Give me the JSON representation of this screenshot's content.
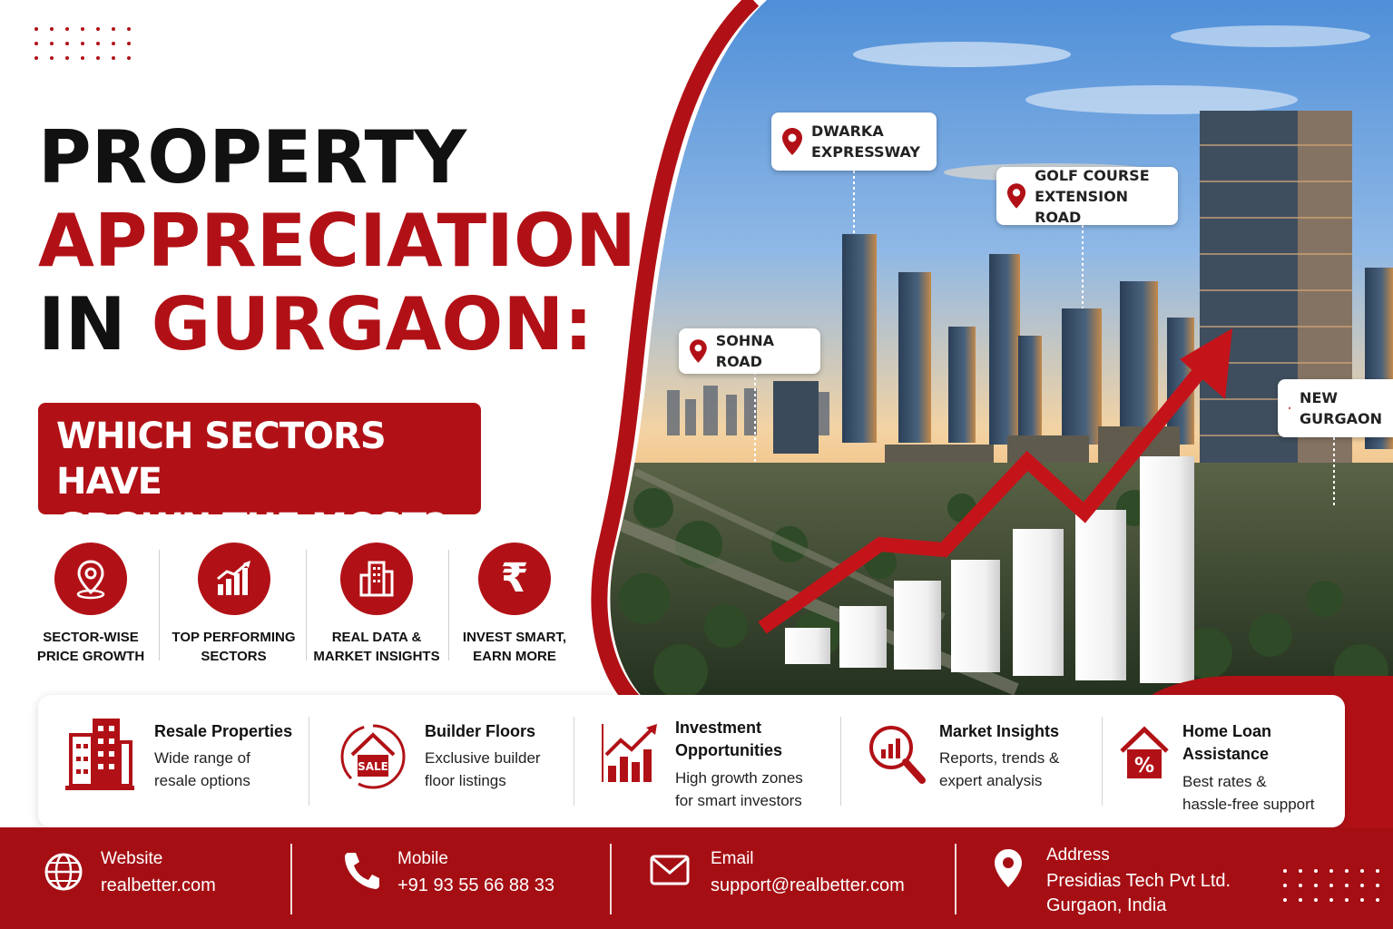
{
  "headline": {
    "line1": "PROPERTY",
    "line2": "APPRECIATION",
    "line3_dark": "IN ",
    "line3_red": "GURGAON:"
  },
  "subheading": {
    "line1": "WHICH SECTORS HAVE",
    "line2": "GROWN THE MOST?"
  },
  "features": [
    {
      "icon": "location-pin-icon",
      "line1": "SECTOR-WISE",
      "line2": "PRICE GROWTH"
    },
    {
      "icon": "bar-chart-growth-icon",
      "line1": "TOP PERFORMING",
      "line2": "SECTORS"
    },
    {
      "icon": "building-icon",
      "line1": "REAL DATA &",
      "line2": "MARKET INSIGHTS"
    },
    {
      "icon": "rupee-icon",
      "line1": "INVEST SMART,",
      "line2": "EARN MORE"
    }
  ],
  "locations": [
    {
      "line1": "DWARKA",
      "line2": "EXPRESSWAY"
    },
    {
      "line1": "GOLF COURSE",
      "line2": "EXTENSION ROAD"
    },
    {
      "line1": "SOHNA ROAD",
      "line2": ""
    },
    {
      "line1": "NEW",
      "line2": "GURGAON"
    }
  ],
  "services": [
    {
      "icon": "buildings-icon",
      "title1": "Resale Properties",
      "title2": "",
      "desc1": "Wide range of",
      "desc2": "resale options"
    },
    {
      "icon": "sale-house-icon",
      "title1": "Builder Floors",
      "title2": "",
      "desc1": "Exclusive builder",
      "desc2": "floor listings"
    },
    {
      "icon": "growth-chart-icon",
      "title1": "Investment",
      "title2": "Opportunities",
      "desc1": "High growth zones",
      "desc2": "for smart investors"
    },
    {
      "icon": "magnifier-chart-icon",
      "title1": "Market Insights",
      "title2": "",
      "desc1": "Reports, trends &",
      "desc2": "expert analysis"
    },
    {
      "icon": "house-percent-icon",
      "title1": "Home Loan",
      "title2": "Assistance",
      "desc1": "Best rates &",
      "desc2": "hassle-free support"
    }
  ],
  "footer": {
    "website": {
      "icon": "globe-icon",
      "label": "Website",
      "value": "realbetter.com"
    },
    "mobile": {
      "icon": "phone-icon",
      "label": "Mobile",
      "value": "+91 93 55 66 88 33"
    },
    "email": {
      "icon": "mail-icon",
      "label": "Email",
      "value": "support@realbetter.com"
    },
    "address": {
      "icon": "map-pin-icon",
      "label": "Address",
      "line1": "Presidias Tech Pvt Ltd.",
      "line2": "Gurgaon, India"
    }
  },
  "colors": {
    "brand_red": "#b11116",
    "footer_red": "#a50f14",
    "text_dark": "#111111"
  }
}
